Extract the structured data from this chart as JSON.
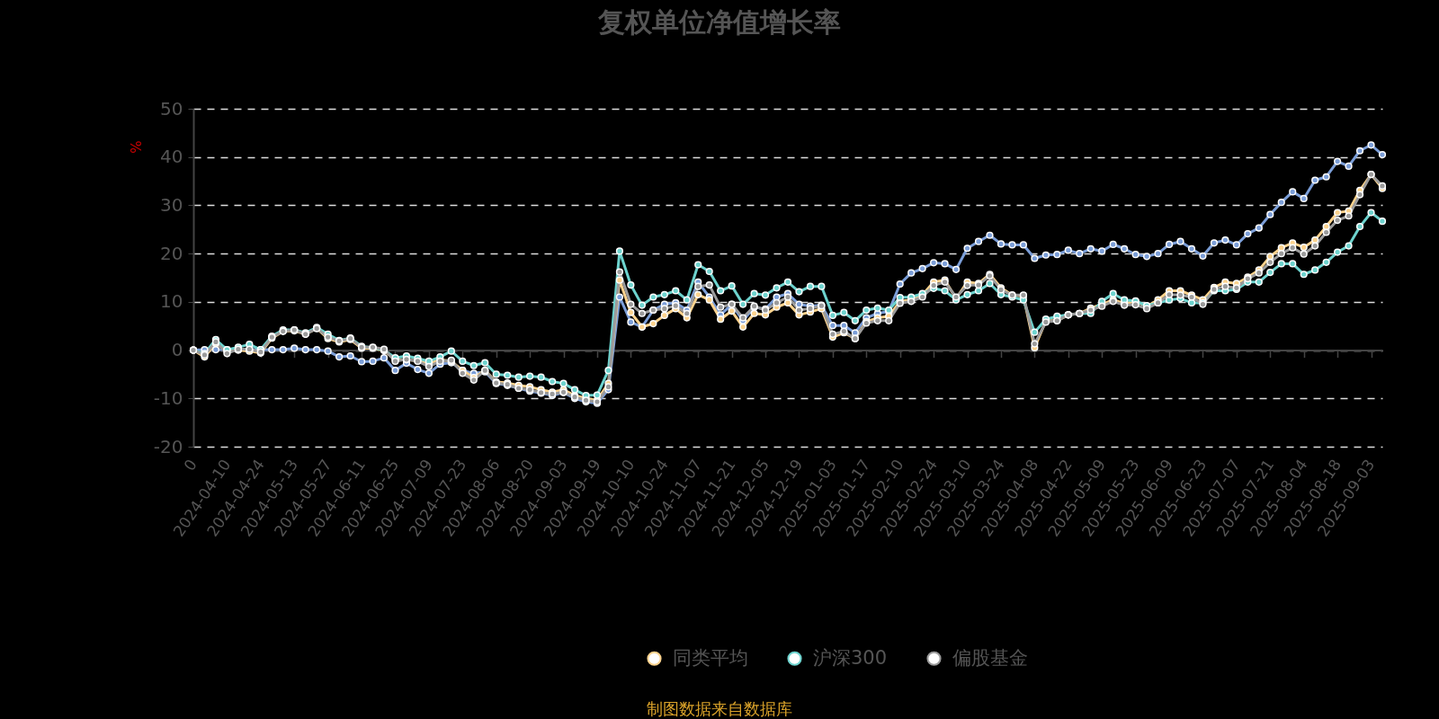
{
  "chart_data": {
    "type": "line",
    "title": "复权单位净值增长率",
    "ylabel": "%",
    "categories": [
      "0",
      null,
      null,
      "2024-04-10",
      null,
      null,
      "2024-04-24",
      null,
      null,
      "2024-05-13",
      null,
      null,
      "2024-05-27",
      null,
      null,
      "2024-06-11",
      null,
      null,
      "2024-06-25",
      null,
      null,
      "2024-07-09",
      null,
      null,
      "2024-07-23",
      null,
      null,
      "2024-08-06",
      null,
      null,
      "2024-08-20",
      null,
      null,
      "2024-09-03",
      null,
      null,
      "2024-09-19",
      null,
      null,
      "2024-10-10",
      null,
      null,
      "2024-10-24",
      null,
      null,
      "2024-11-07",
      null,
      null,
      "2024-11-21",
      null,
      null,
      "2024-12-05",
      null,
      null,
      "2024-12-19",
      null,
      null,
      "2025-01-03",
      null,
      null,
      "2025-01-17",
      null,
      null,
      "2025-02-10",
      null,
      null,
      "2025-02-24",
      null,
      null,
      "2025-03-10",
      null,
      null,
      "2025-03-24",
      null,
      null,
      "2025-04-08",
      null,
      null,
      "2025-04-22",
      null,
      null,
      "2025-05-09",
      null,
      null,
      "2025-05-23",
      null,
      null,
      "2025-06-09",
      null,
      null,
      "2025-06-23",
      null,
      null,
      "2025-07-07",
      null,
      null,
      "2025-07-21",
      null,
      null,
      "2025-08-04",
      null,
      null,
      "2025-08-18",
      null,
      null,
      "2025-09-03",
      null
    ],
    "series": [
      {
        "color": "#7b9ed8",
        "values": [
          0,
          0.1,
          0.1,
          0.1,
          0.1,
          0.1,
          0.1,
          0.1,
          0.1,
          0.4,
          0.1,
          0.1,
          -0.2,
          -1.4,
          -1.2,
          -2.4,
          -2.3,
          -1.6,
          -4.2,
          -2.7,
          -4.0,
          -4.8,
          -2.9,
          -2.6,
          -4.2,
          -4.8,
          -4.5,
          -6.9,
          -7.3,
          -7.9,
          -8.5,
          -8.9,
          -9.4,
          -8.8,
          -10.0,
          -10.7,
          -11.0,
          -8.2,
          11.0,
          5.8,
          4.8,
          8.3,
          9.5,
          9.8,
          8.3,
          14.1,
          11.0,
          7.3,
          9.5,
          6.1,
          8.9,
          8.5,
          11.0,
          11.7,
          9.5,
          9.1,
          9.3,
          5.1,
          5.1,
          3.6,
          6.7,
          7.6,
          8.0,
          13.7,
          16.0,
          16.9,
          18.1,
          17.9,
          16.7,
          21.1,
          22.5,
          23.8,
          22.0,
          21.8,
          21.8,
          19.0,
          19.7,
          19.8,
          20.7,
          20.0,
          21.0,
          20.5,
          21.9,
          21.0,
          19.8,
          19.4,
          20.0,
          21.9,
          22.5,
          21.0,
          19.5,
          22.2,
          22.8,
          21.8,
          24.1,
          25.3,
          28.1,
          30.6,
          32.8,
          31.4,
          35.2,
          35.9,
          39.1,
          38.1,
          41.3,
          42.5,
          40.5
        ]
      },
      {
        "name": "同类平均",
        "color": "#fcd38e",
        "values": [
          0,
          -1.4,
          1.4,
          -0.2,
          0.0,
          -0.2,
          -0.6,
          2.5,
          3.9,
          4.0,
          3.3,
          4.5,
          2.4,
          1.7,
          2.2,
          0.4,
          0.4,
          -0.1,
          -2.0,
          -2.0,
          -2.2,
          -2.7,
          -2.0,
          -2.3,
          -4.2,
          -5.7,
          -4.2,
          -6.6,
          -6.8,
          -7.3,
          -7.6,
          -8.2,
          -8.7,
          -8.2,
          -9.4,
          -10.0,
          -10.4,
          -6.9,
          14.5,
          7.8,
          4.8,
          5.5,
          7.2,
          8.6,
          6.7,
          11.5,
          10.4,
          6.4,
          8.1,
          4.8,
          7.6,
          7.3,
          8.9,
          9.8,
          7.3,
          7.9,
          8.6,
          2.7,
          3.6,
          2.4,
          5.9,
          6.7,
          7.0,
          10.1,
          10.4,
          11.4,
          14.1,
          14.5,
          10.7,
          14.1,
          13.8,
          15.7,
          12.9,
          11.4,
          11.2,
          0.5,
          6.1,
          6.1,
          7.3,
          7.6,
          8.7,
          9.5,
          10.4,
          9.7,
          10.1,
          9.1,
          10.4,
          12.3,
          12.3,
          11.4,
          10.4,
          13.0,
          14.1,
          13.8,
          15.1,
          16.6,
          19.4,
          21.2,
          22.2,
          21.3,
          22.8,
          25.6,
          28.5,
          28.8,
          33.1,
          36.4,
          33.5
        ]
      },
      {
        "name": "沪深300",
        "color": "#6dd3ce",
        "values": [
          0,
          -0.7,
          2.2,
          0.1,
          0.6,
          1.2,
          0.1,
          2.9,
          4.2,
          4.2,
          3.6,
          4.7,
          3.3,
          2.0,
          2.5,
          0.8,
          0.5,
          0.0,
          -1.6,
          -1.2,
          -1.7,
          -2.3,
          -1.4,
          -0.2,
          -2.3,
          -3.2,
          -2.6,
          -5.0,
          -5.2,
          -5.6,
          -5.4,
          -5.6,
          -6.5,
          -6.9,
          -8.2,
          -9.4,
          -9.3,
          -4.2,
          20.5,
          13.5,
          9.3,
          11.0,
          11.5,
          12.3,
          10.4,
          17.7,
          16.3,
          12.3,
          13.3,
          9.5,
          11.7,
          11.4,
          12.9,
          14.1,
          12.1,
          13.2,
          13.2,
          7.2,
          7.8,
          6.1,
          8.3,
          8.7,
          8.3,
          10.9,
          11.0,
          11.7,
          12.8,
          12.3,
          10.4,
          11.5,
          12.3,
          13.8,
          11.5,
          11.0,
          10.4,
          3.7,
          6.4,
          7.0,
          7.3,
          7.6,
          7.6,
          10.1,
          11.7,
          10.4,
          10.2,
          9.2,
          9.8,
          10.4,
          10.7,
          9.8,
          9.8,
          12.3,
          12.3,
          12.6,
          14.1,
          14.1,
          16.1,
          17.9,
          17.9,
          15.7,
          16.6,
          18.2,
          20.3,
          21.6,
          25.6,
          28.5,
          26.7
        ]
      },
      {
        "name": "偏股基金",
        "color": "#9b9b9b",
        "values": [
          0,
          -1.0,
          1.7,
          -0.7,
          0.2,
          0.2,
          -0.4,
          2.7,
          3.9,
          4.2,
          3.3,
          4.5,
          2.7,
          1.9,
          2.4,
          0.6,
          0.6,
          0.2,
          -2.3,
          -1.9,
          -2.3,
          -3.4,
          -2.3,
          -2.1,
          -4.8,
          -6.2,
          -4.2,
          -6.8,
          -7.1,
          -7.9,
          -8.2,
          -8.8,
          -9.1,
          -8.7,
          -9.7,
          -10.4,
          -10.7,
          -7.6,
          16.2,
          9.5,
          7.6,
          8.3,
          8.6,
          9.2,
          7.6,
          13.2,
          13.5,
          8.9,
          9.5,
          6.7,
          9.1,
          8.3,
          9.8,
          11.0,
          8.3,
          8.6,
          9.2,
          3.3,
          3.9,
          2.4,
          5.6,
          6.1,
          6.1,
          9.7,
          10.1,
          11.0,
          13.4,
          14.1,
          11.0,
          13.4,
          13.5,
          15.4,
          12.5,
          11.4,
          11.4,
          1.3,
          5.8,
          6.1,
          7.3,
          7.6,
          8.3,
          9.1,
          10.1,
          9.3,
          9.4,
          8.6,
          9.8,
          11.5,
          11.4,
          11.0,
          9.5,
          12.6,
          13.2,
          12.9,
          14.8,
          16.0,
          18.2,
          20.0,
          21.2,
          19.9,
          21.6,
          24.4,
          26.9,
          27.8,
          32.2,
          36.4,
          34.0
        ]
      }
    ],
    "ylim": [
      -20,
      50
    ],
    "yticks": [
      -20,
      -10,
      0,
      10,
      20,
      30,
      40,
      50
    ],
    "grid": "y",
    "legend": "bottom",
    "marker": "circle",
    "annotations": [
      "制图数据来自数据库"
    ]
  }
}
